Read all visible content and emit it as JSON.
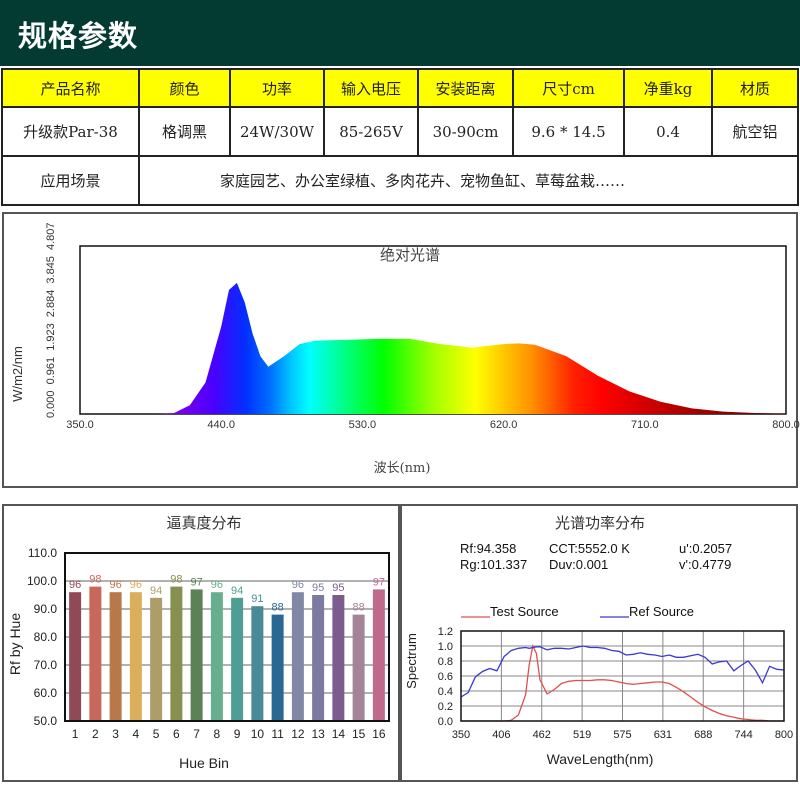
{
  "header": {
    "title": "规格参数"
  },
  "spec_table": {
    "headers": [
      "产品名称",
      "颜色",
      "功率",
      "输入电压",
      "安装距离",
      "尺寸cm",
      "净重kg",
      "材质"
    ],
    "values": [
      "升级款Par-38",
      "格调黑",
      "24W/30W",
      "85-265V",
      "30-90cm",
      "9.6 * 14.5",
      "0.4",
      "航空铝"
    ],
    "application_label": "应用场景",
    "application_value": "家庭园艺、办公室绿植、多肉花卉、宠物鱼缸、草莓盆栽……"
  },
  "colors": {
    "header_bg": "#033a31",
    "table_header_bg": "#ffff00",
    "test_source": "#e05050",
    "ref_source": "#3a3ad0"
  },
  "chart_data": [
    {
      "type": "area",
      "title": "绝对光谱",
      "xlabel": "波长(nm)",
      "ylabel": "W/m2/nm",
      "x_ticks": [
        "350.0",
        "440.0",
        "530.0",
        "620.0",
        "710.0",
        "800.0"
      ],
      "y_ticks": [
        "0.000",
        "0.961",
        "1.923",
        "2.884",
        "3.845",
        "4.807"
      ],
      "xlim": [
        350,
        800
      ],
      "ylim": [
        0,
        4.807
      ],
      "x": [
        350,
        400,
        410,
        420,
        430,
        440,
        445,
        450,
        455,
        460,
        465,
        470,
        480,
        490,
        500,
        520,
        540,
        560,
        580,
        600,
        620,
        630,
        640,
        660,
        680,
        700,
        720,
        740,
        760,
        780,
        800
      ],
      "values": [
        0,
        0,
        0.03,
        0.25,
        0.9,
        2.5,
        3.55,
        3.75,
        3.2,
        2.3,
        1.65,
        1.35,
        1.65,
        2.0,
        2.1,
        2.12,
        2.15,
        2.15,
        2.0,
        1.9,
        2.0,
        2.02,
        1.98,
        1.65,
        1.1,
        0.65,
        0.35,
        0.16,
        0.07,
        0.03,
        0.01
      ]
    },
    {
      "type": "bar",
      "title": "逼真度分布",
      "xlabel": "Hue Bin",
      "ylabel": "Rf by Hue",
      "categories": [
        "1",
        "2",
        "3",
        "4",
        "5",
        "6",
        "7",
        "8",
        "9",
        "10",
        "11",
        "12",
        "13",
        "14",
        "15",
        "16"
      ],
      "values": [
        96,
        98,
        96,
        96,
        94,
        98,
        97,
        96,
        94,
        91,
        88,
        96,
        95,
        95,
        88,
        97
      ],
      "bar_colors": [
        "#8f4a56",
        "#c9675a",
        "#b8784a",
        "#dbae5c",
        "#ae9d69",
        "#86904f",
        "#5c8157",
        "#67ae8e",
        "#4f9e93",
        "#4a8a96",
        "#2a6791",
        "#8188a6",
        "#7c7aa0",
        "#7c5c8e",
        "#a48497",
        "#bf6a8c"
      ],
      "y_ticks": [
        "50.0",
        "60.0",
        "70.0",
        "80.0",
        "90.0",
        "100.0",
        "110.0"
      ],
      "ylim": [
        50,
        110
      ],
      "grid": true
    },
    {
      "type": "line",
      "title": "光谱功率分布",
      "stats": {
        "rf": "Rf:94.358",
        "rg": "Rg:101.337",
        "cct": "CCT:5552.0 K",
        "duv": "Duv:0.001",
        "u": "u':0.2057",
        "v": "v':0.4779"
      },
      "xlabel": "WaveLength(nm)",
      "ylabel": "Spectrum",
      "x_ticks": [
        "350",
        "406",
        "462",
        "519",
        "575",
        "631",
        "688",
        "744",
        "800"
      ],
      "y_ticks": [
        "0.0",
        "0.2",
        "0.4",
        "0.6",
        "0.8",
        "1.0",
        "1.2"
      ],
      "xlim": [
        350,
        800
      ],
      "ylim": [
        0,
        1.2
      ],
      "legend": [
        "Test Source",
        "Ref Source"
      ],
      "x": [
        350,
        360,
        370,
        380,
        390,
        400,
        410,
        420,
        430,
        440,
        445,
        450,
        455,
        460,
        470,
        480,
        490,
        500,
        510,
        520,
        530,
        540,
        550,
        560,
        570,
        580,
        590,
        600,
        610,
        620,
        630,
        640,
        650,
        660,
        670,
        680,
        690,
        700,
        710,
        720,
        730,
        740,
        750,
        760,
        770,
        780,
        790,
        800
      ],
      "series": [
        {
          "name": "Test Source",
          "values": [
            0,
            0,
            0,
            0,
            0,
            0,
            0,
            0.01,
            0.08,
            0.35,
            0.75,
            1.0,
            0.9,
            0.55,
            0.36,
            0.42,
            0.5,
            0.53,
            0.54,
            0.54,
            0.54,
            0.55,
            0.55,
            0.54,
            0.52,
            0.5,
            0.49,
            0.5,
            0.51,
            0.52,
            0.52,
            0.5,
            0.45,
            0.39,
            0.32,
            0.25,
            0.19,
            0.14,
            0.1,
            0.07,
            0.05,
            0.03,
            0.02,
            0.01,
            0.01,
            0,
            0,
            0
          ]
        },
        {
          "name": "Ref Source",
          "values": [
            0.32,
            0.38,
            0.59,
            0.66,
            0.7,
            0.67,
            0.86,
            0.94,
            0.97,
            0.98,
            0.97,
            0.98,
            0.99,
            0.99,
            0.95,
            0.97,
            0.97,
            0.96,
            0.98,
            1.0,
            0.98,
            0.98,
            0.97,
            0.94,
            0.93,
            0.88,
            0.89,
            0.91,
            0.89,
            0.88,
            0.86,
            0.88,
            0.85,
            0.85,
            0.87,
            0.89,
            0.85,
            0.76,
            0.79,
            0.8,
            0.67,
            0.74,
            0.8,
            0.68,
            0.51,
            0.73,
            0.69,
            0.68
          ]
        }
      ],
      "grid": true
    }
  ]
}
